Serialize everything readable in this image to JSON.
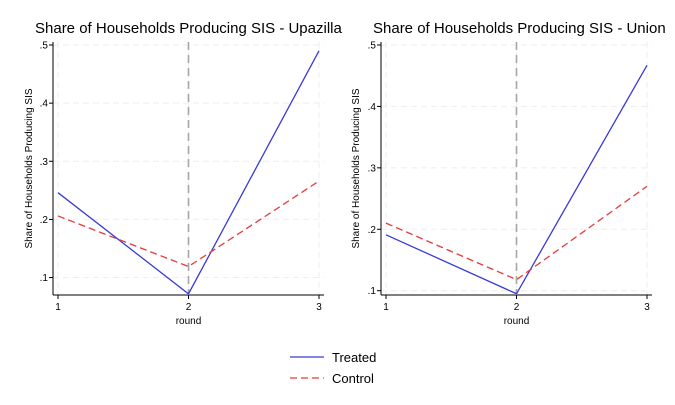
{
  "chart_data": [
    {
      "type": "line",
      "title": "Share of Households Producing SIS - Upazilla",
      "xlabel": "round",
      "ylabel": "Share of Households Producing SIS",
      "x": [
        1,
        2,
        3
      ],
      "xlim": [
        1,
        3
      ],
      "ylim": [
        0.07,
        0.5
      ],
      "xticks": [
        "1",
        "2",
        "3"
      ],
      "yticks": [
        ".1",
        ".2",
        ".3",
        ".4",
        ".5"
      ],
      "ytick_values": [
        0.1,
        0.2,
        0.3,
        0.4,
        0.5
      ],
      "vertical_reference_line": 2,
      "grid": true,
      "series": [
        {
          "name": "Treated",
          "values": [
            0.246,
            0.072,
            0.49
          ],
          "color": "#3a3ad8",
          "style": "solid"
        },
        {
          "name": "Control",
          "values": [
            0.206,
            0.119,
            0.266
          ],
          "color": "#e43b3b",
          "style": "dashed"
        }
      ]
    },
    {
      "type": "line",
      "title": "Share of Households Producing SIS - Union",
      "xlabel": "round",
      "ylabel": "Share of Households Producing SIS",
      "x": [
        1,
        2,
        3
      ],
      "xlim": [
        1,
        3
      ],
      "ylim": [
        0.093,
        0.5
      ],
      "xticks": [
        "1",
        "2",
        "3"
      ],
      "yticks": [
        ".1",
        ".2",
        ".3",
        ".4",
        ".5"
      ],
      "ytick_values": [
        0.1,
        0.2,
        0.3,
        0.4,
        0.5
      ],
      "vertical_reference_line": 2,
      "grid": true,
      "series": [
        {
          "name": "Treated",
          "values": [
            0.191,
            0.095,
            0.467
          ],
          "color": "#3a3ad8",
          "style": "solid"
        },
        {
          "name": "Control",
          "values": [
            0.21,
            0.118,
            0.27
          ],
          "color": "#e43b3b",
          "style": "dashed"
        }
      ]
    }
  ],
  "legend": {
    "position": "bottom-center",
    "items": [
      {
        "label": "Treated",
        "color": "#3a3ad8",
        "style": "solid"
      },
      {
        "label": "Control",
        "color": "#e43b3b",
        "style": "dashed"
      }
    ]
  }
}
